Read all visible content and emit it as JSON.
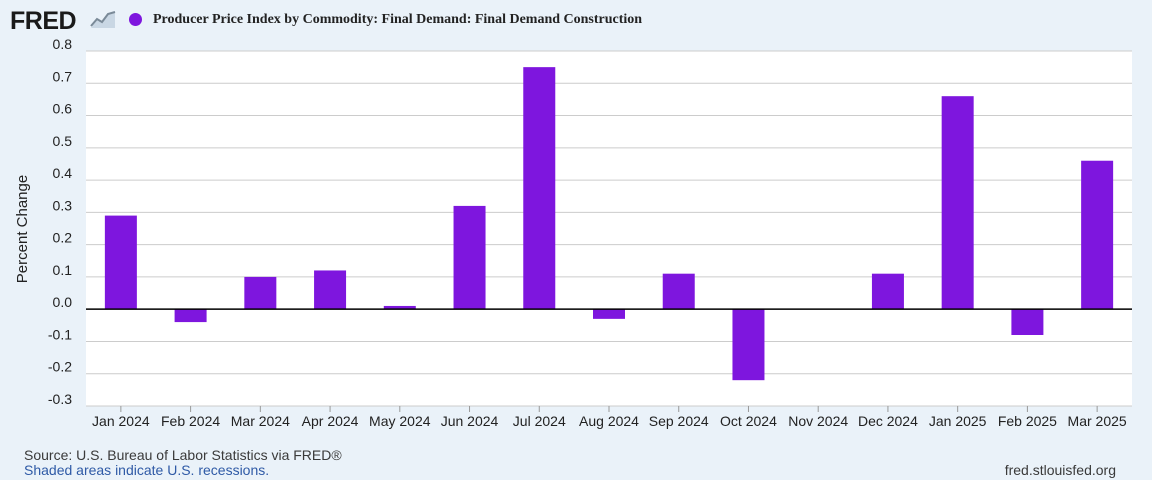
{
  "header": {
    "logo_text": "FRED",
    "logo_icon": "line-chart-icon",
    "series_title": "Producer Price Index by Commodity: Final Demand: Final Demand Construction"
  },
  "colors": {
    "bar": "#7e16de",
    "background": "#eaf2f9",
    "plot_background": "#ffffff",
    "grid": "#cccccc",
    "zero_line": "#000000",
    "link": "#2f5aa6"
  },
  "chart_data": {
    "type": "bar",
    "title": "Producer Price Index by Commodity: Final Demand: Final Demand Construction",
    "xlabel": "",
    "ylabel": "Percent Change",
    "categories": [
      "Jan 2024",
      "Feb 2024",
      "Mar 2024",
      "Apr 2024",
      "May 2024",
      "Jun 2024",
      "Jul 2024",
      "Aug 2024",
      "Sep 2024",
      "Oct 2024",
      "Nov 2024",
      "Dec 2024",
      "Jan 2025",
      "Feb 2025",
      "Mar 2025"
    ],
    "values": [
      0.29,
      -0.04,
      0.1,
      0.12,
      0.01,
      0.32,
      0.75,
      -0.03,
      0.11,
      -0.22,
      0.0,
      0.11,
      0.66,
      -0.08,
      0.46
    ],
    "ylim": [
      -0.3,
      0.8
    ],
    "yticks": [
      "0.8",
      "0.7",
      "0.6",
      "0.5",
      "0.4",
      "0.3",
      "0.2",
      "0.1",
      "0.0",
      "-0.1",
      "-0.2",
      "-0.3"
    ],
    "grid": true,
    "legend": "top-left"
  },
  "footer": {
    "source": "Source: U.S. Bureau of Labor Statistics via FRED®",
    "recessions": "Shaded areas indicate U.S. recessions.",
    "url": "fred.stlouisfed.org"
  }
}
